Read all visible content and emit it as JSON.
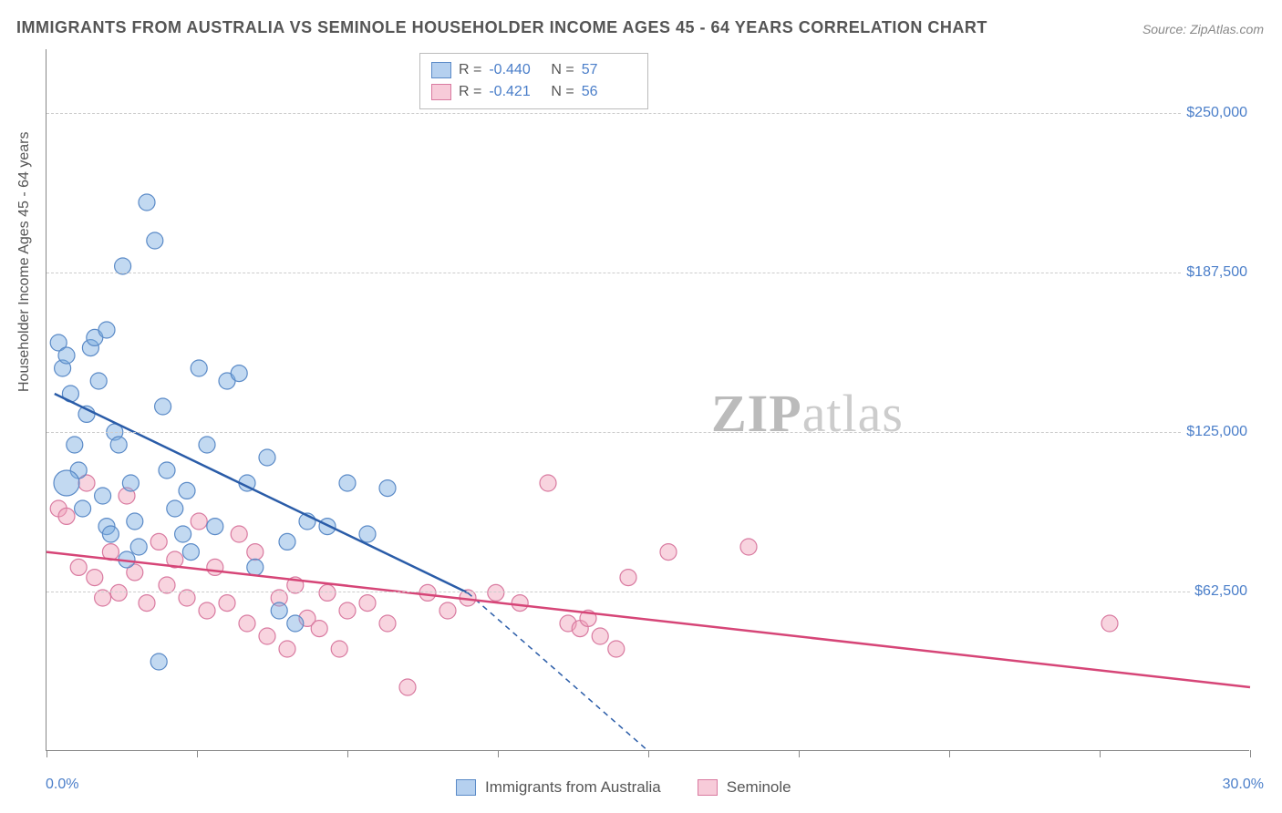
{
  "title": "IMMIGRANTS FROM AUSTRALIA VS SEMINOLE HOUSEHOLDER INCOME AGES 45 - 64 YEARS CORRELATION CHART",
  "source_label": "Source:",
  "source_name": "ZipAtlas.com",
  "ylabel": "Householder Income Ages 45 - 64 years",
  "watermark_zip": "ZIP",
  "watermark_atlas": "atlas",
  "chart": {
    "type": "scatter",
    "background_color": "#ffffff",
    "grid_color": "#cccccc",
    "axis_color": "#888888",
    "text_color": "#555555",
    "tick_label_color": "#4a7ec9",
    "xlim": [
      0,
      30
    ],
    "ylim": [
      0,
      275000
    ],
    "x_tick_positions": [
      0,
      3.75,
      7.5,
      11.25,
      15,
      18.75,
      22.5,
      26.25,
      30
    ],
    "x_tick_labels_visible": {
      "0": "0.0%",
      "30": "30.0%"
    },
    "y_gridlines": [
      62500,
      125000,
      187500,
      250000
    ],
    "y_tick_labels": [
      "$62,500",
      "$125,000",
      "$187,500",
      "$250,000"
    ],
    "series": [
      {
        "name": "Immigrants from Australia",
        "color_fill": "rgba(120,170,225,0.45)",
        "color_stroke": "#5a8ac7",
        "trend_color": "#2a5ca8",
        "trend_start": [
          0.2,
          140000
        ],
        "trend_end": [
          10.5,
          62000
        ],
        "trend_dashed_end": [
          15,
          0
        ],
        "R": "-0.440",
        "N": "57",
        "marker_radius": 9,
        "points": [
          [
            0.3,
            160000
          ],
          [
            0.4,
            150000
          ],
          [
            0.5,
            155000
          ],
          [
            0.6,
            140000
          ],
          [
            0.7,
            120000
          ],
          [
            0.8,
            110000
          ],
          [
            0.9,
            95000
          ],
          [
            1.0,
            132000
          ],
          [
            1.1,
            158000
          ],
          [
            1.2,
            162000
          ],
          [
            1.3,
            145000
          ],
          [
            1.4,
            100000
          ],
          [
            1.5,
            88000
          ],
          [
            1.6,
            85000
          ],
          [
            1.7,
            125000
          ],
          [
            1.8,
            120000
          ],
          [
            1.9,
            190000
          ],
          [
            2.0,
            75000
          ],
          [
            2.1,
            105000
          ],
          [
            2.2,
            90000
          ],
          [
            2.3,
            80000
          ],
          [
            2.5,
            215000
          ],
          [
            2.7,
            200000
          ],
          [
            2.9,
            135000
          ],
          [
            3.0,
            110000
          ],
          [
            3.2,
            95000
          ],
          [
            3.4,
            85000
          ],
          [
            3.5,
            102000
          ],
          [
            3.6,
            78000
          ],
          [
            3.8,
            150000
          ],
          [
            4.0,
            120000
          ],
          [
            4.2,
            88000
          ],
          [
            4.5,
            145000
          ],
          [
            4.8,
            148000
          ],
          [
            5.0,
            105000
          ],
          [
            5.2,
            72000
          ],
          [
            5.5,
            115000
          ],
          [
            5.8,
            55000
          ],
          [
            6.0,
            82000
          ],
          [
            6.2,
            50000
          ],
          [
            6.5,
            90000
          ],
          [
            7.0,
            88000
          ],
          [
            7.5,
            105000
          ],
          [
            8.0,
            85000
          ],
          [
            8.5,
            103000
          ],
          [
            2.8,
            35000
          ],
          [
            1.5,
            165000
          ],
          [
            0.5,
            105000,
            14
          ]
        ]
      },
      {
        "name": "Seminole",
        "color_fill": "rgba(240,160,185,0.45)",
        "color_stroke": "#d97aa0",
        "trend_color": "#d64577",
        "trend_start": [
          0,
          78000
        ],
        "trend_end": [
          30,
          25000
        ],
        "R": "-0.421",
        "N": "56",
        "marker_radius": 9,
        "points": [
          [
            0.3,
            95000
          ],
          [
            0.5,
            92000
          ],
          [
            0.8,
            72000
          ],
          [
            1.0,
            105000
          ],
          [
            1.2,
            68000
          ],
          [
            1.4,
            60000
          ],
          [
            1.6,
            78000
          ],
          [
            1.8,
            62000
          ],
          [
            2.0,
            100000
          ],
          [
            2.2,
            70000
          ],
          [
            2.5,
            58000
          ],
          [
            2.8,
            82000
          ],
          [
            3.0,
            65000
          ],
          [
            3.2,
            75000
          ],
          [
            3.5,
            60000
          ],
          [
            3.8,
            90000
          ],
          [
            4.0,
            55000
          ],
          [
            4.2,
            72000
          ],
          [
            4.5,
            58000
          ],
          [
            4.8,
            85000
          ],
          [
            5.0,
            50000
          ],
          [
            5.2,
            78000
          ],
          [
            5.5,
            45000
          ],
          [
            5.8,
            60000
          ],
          [
            6.0,
            40000
          ],
          [
            6.2,
            65000
          ],
          [
            6.5,
            52000
          ],
          [
            6.8,
            48000
          ],
          [
            7.0,
            62000
          ],
          [
            7.3,
            40000
          ],
          [
            7.5,
            55000
          ],
          [
            8.0,
            58000
          ],
          [
            8.5,
            50000
          ],
          [
            9.0,
            25000
          ],
          [
            9.5,
            62000
          ],
          [
            10.0,
            55000
          ],
          [
            10.5,
            60000
          ],
          [
            11.2,
            62000
          ],
          [
            11.8,
            58000
          ],
          [
            12.5,
            105000
          ],
          [
            13.0,
            50000
          ],
          [
            13.3,
            48000
          ],
          [
            13.5,
            52000
          ],
          [
            13.8,
            45000
          ],
          [
            14.2,
            40000
          ],
          [
            14.5,
            68000
          ],
          [
            15.5,
            78000
          ],
          [
            17.5,
            80000
          ],
          [
            26.5,
            50000
          ]
        ]
      }
    ]
  },
  "legend_top": {
    "rows": [
      {
        "swatch": "blue",
        "R_label": "R =",
        "R": "-0.440",
        "N_label": "N =",
        "N": "57"
      },
      {
        "swatch": "pink",
        "R_label": "R =",
        "R": "-0.421",
        "N_label": "N =",
        "N": "56"
      }
    ]
  },
  "legend_bottom": {
    "items": [
      {
        "swatch": "blue",
        "label": "Immigrants from Australia"
      },
      {
        "swatch": "pink",
        "label": "Seminole"
      }
    ]
  }
}
